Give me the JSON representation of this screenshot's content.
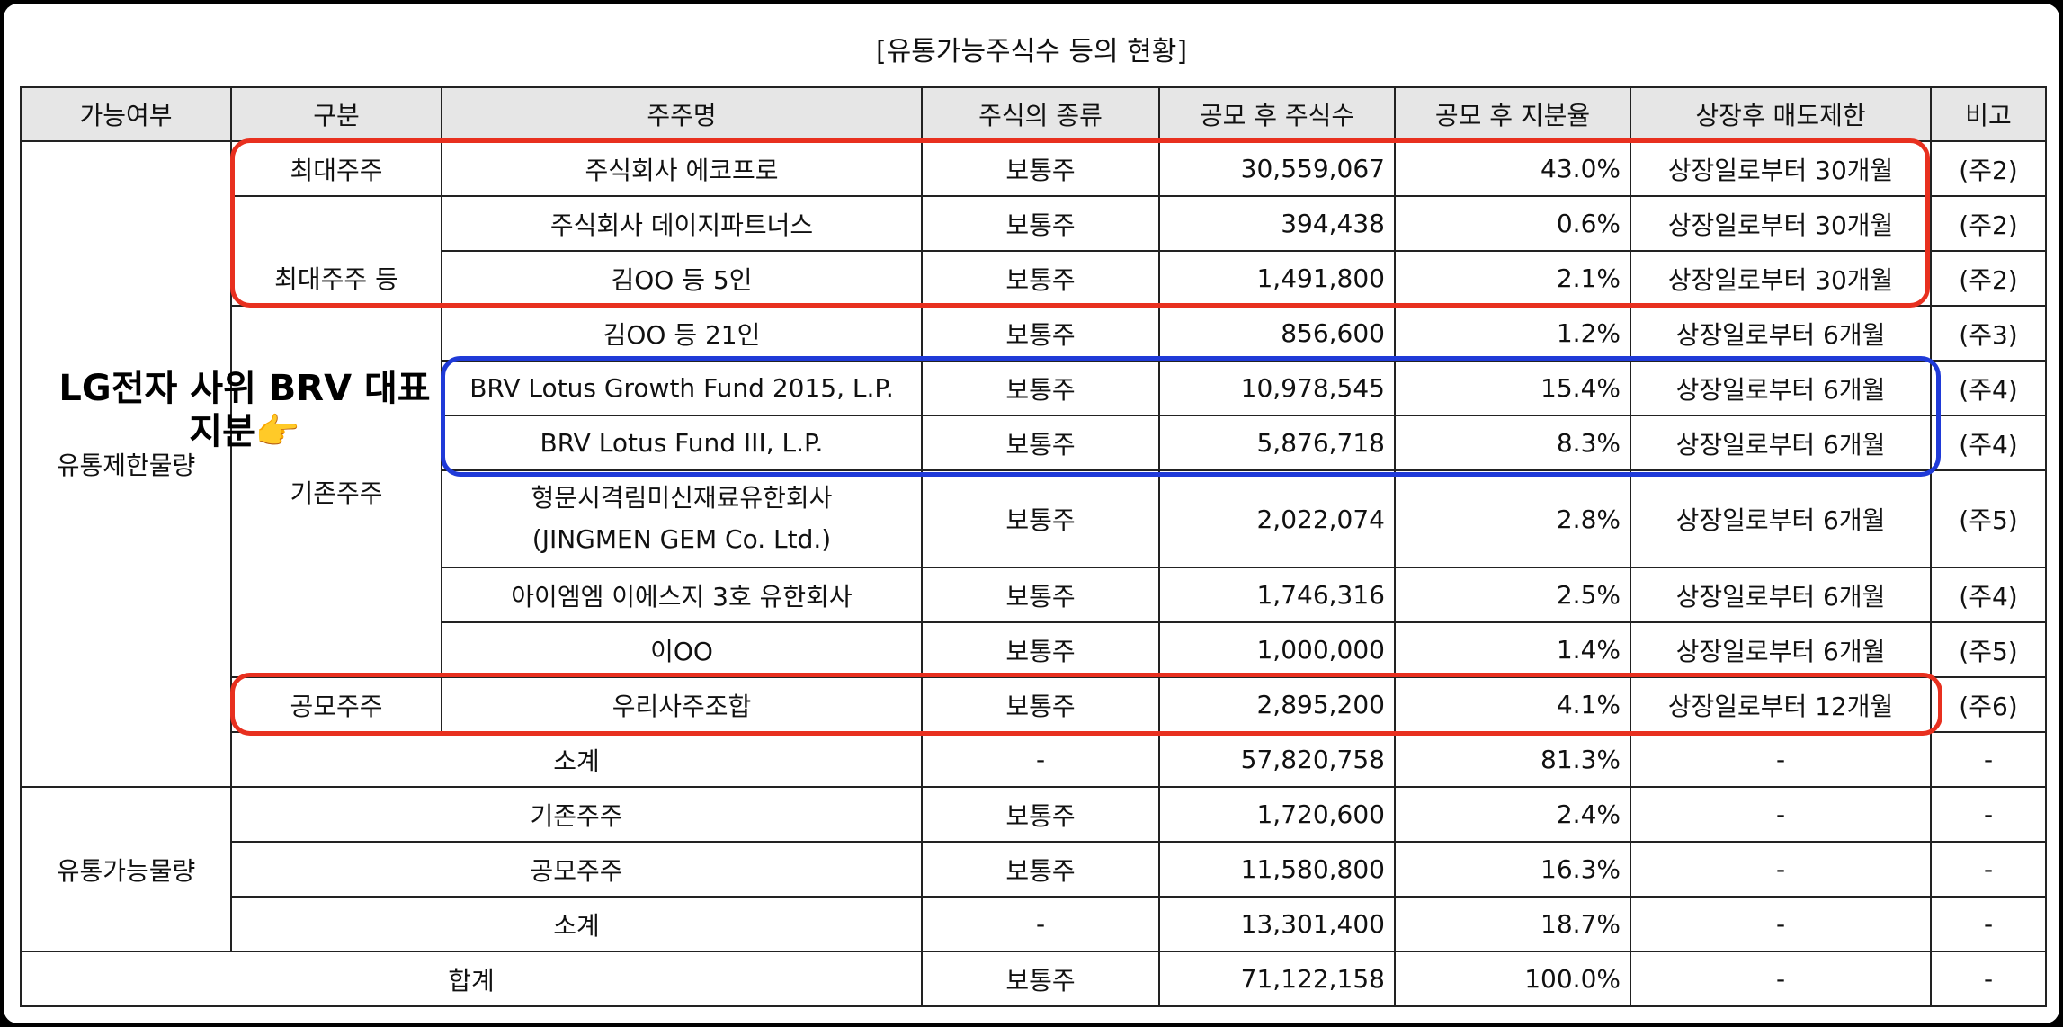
{
  "title": "[유통가능주식수 등의 현황]",
  "headers": [
    "가능여부",
    "구분",
    "주주명",
    "주식의 종류",
    "공모 후 주식수",
    "공모 후 지분율",
    "상장후 매도제한",
    "비고"
  ],
  "restricted_label": "유통제한물량",
  "available_label": "유통가능물량",
  "rows": [
    {
      "group": "최대주주",
      "name": "주식회사 에코프로",
      "type": "보통주",
      "shares": "30,559,067",
      "ratio": "43.0%",
      "lockup": "상장일로부터 30개월",
      "note": "(주2)"
    },
    {
      "group": "최대주주 등",
      "name": "주식회사 데이지파트너스",
      "type": "보통주",
      "shares": "394,438",
      "ratio": "0.6%",
      "lockup": "상장일로부터 30개월",
      "note": "(주2)"
    },
    {
      "name": "김OO 등 5인",
      "type": "보통주",
      "shares": "1,491,800",
      "ratio": "2.1%",
      "lockup": "상장일로부터 30개월",
      "note": "(주2)"
    },
    {
      "name": "김OO 등 21인",
      "type": "보통주",
      "shares": "856,600",
      "ratio": "1.2%",
      "lockup": "상장일로부터 6개월",
      "note": "(주3)"
    },
    {
      "group": "기존주주",
      "name": "BRV Lotus Growth Fund 2015, L.P.",
      "type": "보통주",
      "shares": "10,978,545",
      "ratio": "15.4%",
      "lockup": "상장일로부터 6개월",
      "note": "(주4)"
    },
    {
      "name": "BRV Lotus Fund III, L.P.",
      "type": "보통주",
      "shares": "5,876,718",
      "ratio": "8.3%",
      "lockup": "상장일로부터 6개월",
      "note": "(주4)"
    },
    {
      "name": "형문시격림미신재료유한회사",
      "name2": "(JINGMEN GEM Co. Ltd.)",
      "type": "보통주",
      "shares": "2,022,074",
      "ratio": "2.8%",
      "lockup": "상장일로부터 6개월",
      "note": "(주5)"
    },
    {
      "name": "아이엠엠 이에스지 3호 유한회사",
      "type": "보통주",
      "shares": "1,746,316",
      "ratio": "2.5%",
      "lockup": "상장일로부터 6개월",
      "note": "(주4)"
    },
    {
      "name": "이OO",
      "type": "보통주",
      "shares": "1,000,000",
      "ratio": "1.4%",
      "lockup": "상장일로부터 6개월",
      "note": "(주5)"
    },
    {
      "group": "공모주주",
      "name": "우리사주조합",
      "type": "보통주",
      "shares": "2,895,200",
      "ratio": "4.1%",
      "lockup": "상장일로부터 12개월",
      "note": "(주6)"
    }
  ],
  "restricted_subtotal": {
    "label": "소계",
    "type": "-",
    "shares": "57,820,758",
    "ratio": "81.3%",
    "lockup": "-",
    "note": "-"
  },
  "available_rows": [
    {
      "label": "기존주주",
      "type": "보통주",
      "shares": "1,720,600",
      "ratio": "2.4%",
      "lockup": "-",
      "note": "-"
    },
    {
      "label": "공모주주",
      "type": "보통주",
      "shares": "11,580,800",
      "ratio": "16.3%",
      "lockup": "-",
      "note": "-"
    },
    {
      "label": "소계",
      "type": "-",
      "shares": "13,301,400",
      "ratio": "18.7%",
      "lockup": "-",
      "note": "-"
    }
  ],
  "total": {
    "label": "합계",
    "type": "보통주",
    "shares": "71,122,158",
    "ratio": "100.0%",
    "lockup": "-",
    "note": "-"
  },
  "annotation": {
    "text": "LG전자 사위 BRV 대표 지분",
    "emoji": "👉",
    "color": "#000000"
  },
  "highlight_colors": {
    "red": "#e8301f",
    "blue": "#1f3ad8"
  }
}
